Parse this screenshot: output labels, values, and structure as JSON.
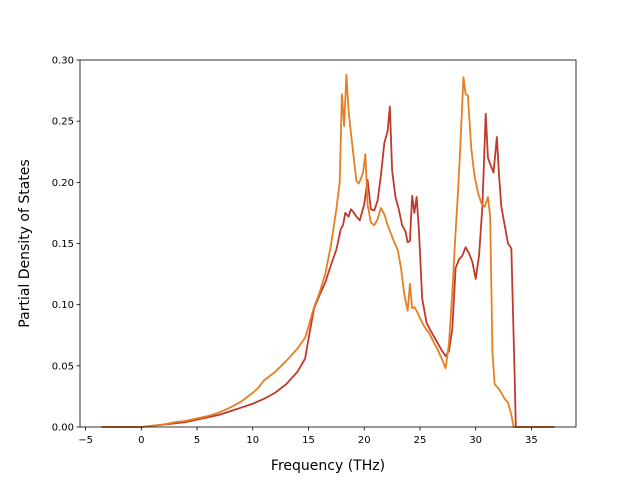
{
  "chart_data": {
    "type": "line",
    "title": "",
    "xlabel": "Frequency (THz)",
    "ylabel": "Partial Density of States",
    "xlim": [
      -5.5,
      39
    ],
    "ylim": [
      0,
      0.3
    ],
    "xticks": [
      -5,
      0,
      5,
      10,
      15,
      20,
      25,
      30,
      35
    ],
    "yticks": [
      0.0,
      0.05,
      0.1,
      0.15,
      0.2,
      0.25,
      0.3
    ],
    "xtick_labels": [
      "−5",
      "0",
      "5",
      "10",
      "15",
      "20",
      "25",
      "30",
      "35"
    ],
    "ytick_labels": [
      "0.00",
      "0.05",
      "0.10",
      "0.15",
      "0.20",
      "0.25",
      "0.30"
    ],
    "grid": false,
    "legend": "none",
    "series": [
      {
        "color": "#c0392b",
        "x": [
          -3.5,
          0,
          1,
          2,
          3,
          4,
          5,
          6,
          7,
          8,
          9,
          10,
          11,
          12,
          13,
          14,
          14.7,
          15,
          15.5,
          16,
          16.5,
          17,
          17.5,
          17.9,
          18.1,
          18.3,
          18.6,
          18.8,
          19,
          19.3,
          19.6,
          20,
          20.3,
          20.6,
          20.9,
          21.2,
          21.5,
          21.8,
          22.1,
          22.3,
          22.5,
          22.8,
          23.1,
          23.4,
          23.7,
          23.9,
          24.1,
          24.3,
          24.5,
          24.7,
          24.9,
          25.2,
          25.6,
          26,
          26.5,
          27,
          27.3,
          27.6,
          27.9,
          28.2,
          28.5,
          28.8,
          29.1,
          29.4,
          29.7,
          30,
          30.3,
          30.6,
          30.9,
          31.1,
          31.3,
          31.6,
          31.9,
          32.1,
          32.3,
          32.6,
          32.9,
          33.2,
          33.5,
          33.6,
          33.7,
          37
        ],
        "y": [
          0,
          0,
          0.001,
          0.002,
          0.003,
          0.004,
          0.006,
          0.008,
          0.01,
          0.013,
          0.016,
          0.019,
          0.023,
          0.028,
          0.035,
          0.045,
          0.056,
          0.072,
          0.097,
          0.108,
          0.118,
          0.132,
          0.145,
          0.162,
          0.165,
          0.175,
          0.172,
          0.178,
          0.176,
          0.172,
          0.169,
          0.182,
          0.202,
          0.178,
          0.177,
          0.185,
          0.206,
          0.232,
          0.242,
          0.262,
          0.21,
          0.188,
          0.178,
          0.165,
          0.16,
          0.151,
          0.152,
          0.189,
          0.175,
          0.188,
          0.162,
          0.105,
          0.085,
          0.078,
          0.07,
          0.062,
          0.058,
          0.062,
          0.08,
          0.13,
          0.137,
          0.14,
          0.147,
          0.142,
          0.135,
          0.121,
          0.14,
          0.18,
          0.256,
          0.22,
          0.215,
          0.208,
          0.237,
          0.205,
          0.18,
          0.165,
          0.15,
          0.146,
          0.04,
          0.0,
          0,
          0
        ]
      },
      {
        "color": "#e67e22",
        "x": [
          -3.5,
          0,
          1,
          2,
          3,
          4,
          5,
          6,
          7,
          8,
          9,
          10,
          10.5,
          11,
          12,
          13,
          14,
          14.7,
          15,
          15.5,
          16,
          16.5,
          17,
          17.5,
          17.8,
          18,
          18.2,
          18.4,
          18.6,
          18.8,
          19,
          19.3,
          19.5,
          19.7,
          19.9,
          20.1,
          20.3,
          20.6,
          20.9,
          21.2,
          21.5,
          21.8,
          22.1,
          22.4,
          22.7,
          23,
          23.3,
          23.6,
          23.9,
          24.1,
          24.3,
          24.5,
          24.7,
          25,
          25.4,
          25.8,
          26.2,
          26.6,
          27,
          27.3,
          27.6,
          27.9,
          28.2,
          28.4,
          28.6,
          28.9,
          29.1,
          29.3,
          29.6,
          29.9,
          30.2,
          30.5,
          30.8,
          31.1,
          31.3,
          31.5,
          31.7,
          32,
          32.3,
          32.6,
          32.9,
          33.2,
          33.4,
          33.6,
          37
        ],
        "y": [
          0,
          0,
          0.001,
          0.002,
          0.004,
          0.005,
          0.007,
          0.009,
          0.012,
          0.016,
          0.021,
          0.028,
          0.032,
          0.038,
          0.045,
          0.054,
          0.064,
          0.073,
          0.082,
          0.098,
          0.11,
          0.125,
          0.148,
          0.178,
          0.2,
          0.272,
          0.246,
          0.288,
          0.258,
          0.241,
          0.225,
          0.201,
          0.199,
          0.203,
          0.208,
          0.223,
          0.182,
          0.167,
          0.165,
          0.17,
          0.179,
          0.174,
          0.165,
          0.158,
          0.151,
          0.145,
          0.13,
          0.108,
          0.095,
          0.117,
          0.097,
          0.098,
          0.095,
          0.089,
          0.082,
          0.077,
          0.07,
          0.063,
          0.055,
          0.048,
          0.068,
          0.11,
          0.16,
          0.19,
          0.225,
          0.286,
          0.272,
          0.271,
          0.228,
          0.205,
          0.192,
          0.183,
          0.18,
          0.188,
          0.172,
          0.062,
          0.035,
          0.032,
          0.028,
          0.023,
          0.02,
          0.01,
          0.0,
          0,
          0
        ]
      }
    ]
  }
}
